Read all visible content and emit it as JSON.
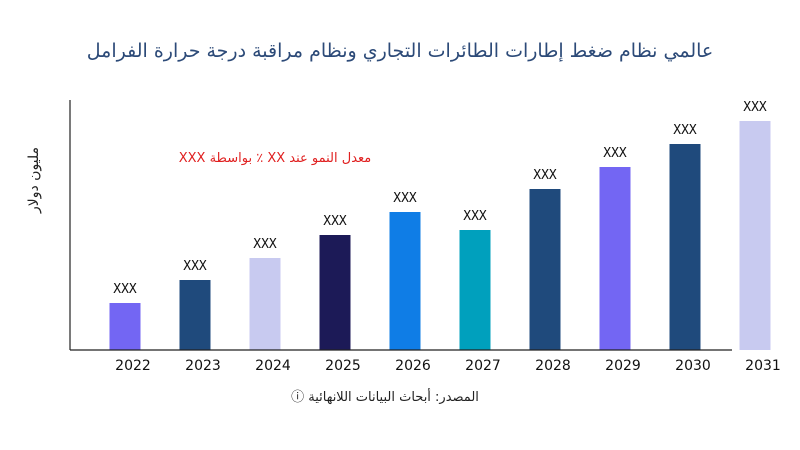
{
  "chart_data": {
    "type": "bar",
    "title": "عالمي نظام ضغط إطارات الطائرات التجاري ونظام مراقبة درجة حرارة الفرامل",
    "ylabel": "مليون دولار",
    "xlabel": "",
    "categories": [
      "2022",
      "2023",
      "2024",
      "2025",
      "2026",
      "2027",
      "2028",
      "2029",
      "2030",
      "2031"
    ],
    "values": [
      47,
      70,
      92,
      115,
      138,
      120,
      161,
      183,
      206,
      229
    ],
    "value_labels": [
      "XXX",
      "XXX",
      "XXX",
      "XXX",
      "XXX",
      "XXX",
      "XXX",
      "XXX",
      "XXX",
      "XXX"
    ],
    "bar_colors": [
      "#7366f3",
      "#1f4a7c",
      "#c8caf0",
      "#1c1a57",
      "#0f7de6",
      "#00a0bd",
      "#1f4a7c",
      "#7366f3",
      "#1f4a7c",
      "#c8caf0"
    ],
    "ylim": [
      0,
      250
    ],
    "grid": false,
    "annotation": "معدل النمو عند XX ٪ بواسطة XXX",
    "annotation_color": "#e02020",
    "source": "المصدر: أبحاث البيانات اللانهائية ⓘ"
  }
}
